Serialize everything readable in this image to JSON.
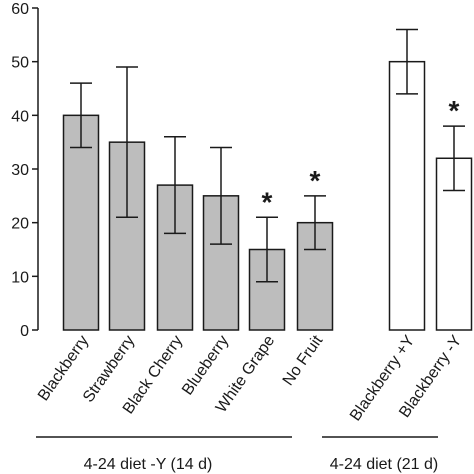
{
  "chart_data": {
    "type": "bar",
    "title": "",
    "xlabel": "",
    "ylabel": "",
    "ylim": [
      0,
      60
    ],
    "yticks": [
      0,
      10,
      20,
      30,
      40,
      50,
      60
    ],
    "categories": [
      "Blackberry",
      "Strawberry",
      "Black Cherry",
      "Blueberry",
      "White Grape",
      "No Fruit",
      "Blackberry +Y",
      "Blackberry -Y"
    ],
    "values": [
      40,
      35,
      27,
      25,
      15,
      20,
      50,
      32
    ],
    "error_low": [
      34,
      21,
      18,
      16,
      9,
      15,
      44,
      26
    ],
    "error_high": [
      46,
      49,
      36,
      34,
      21,
      25,
      56,
      38
    ],
    "significant": [
      false,
      false,
      false,
      false,
      true,
      true,
      false,
      true
    ],
    "significance_marker": "*",
    "bar_fill": [
      "#bdbdbd",
      "#bdbdbd",
      "#bdbdbd",
      "#bdbdbd",
      "#bdbdbd",
      "#bdbdbd",
      "#ffffff",
      "#ffffff"
    ],
    "groups": [
      {
        "label": "4-24 diet  -Y (14 d)",
        "categories": [
          0,
          1,
          2,
          3,
          4,
          5
        ]
      },
      {
        "label": "4-24 diet  (21 d)",
        "categories": [
          6,
          7
        ]
      }
    ],
    "grid": false,
    "legend": "none"
  },
  "colors": {
    "filled_bar": "#bdbdbd",
    "open_bar": "#ffffff",
    "stroke": "#1a1a1a"
  }
}
